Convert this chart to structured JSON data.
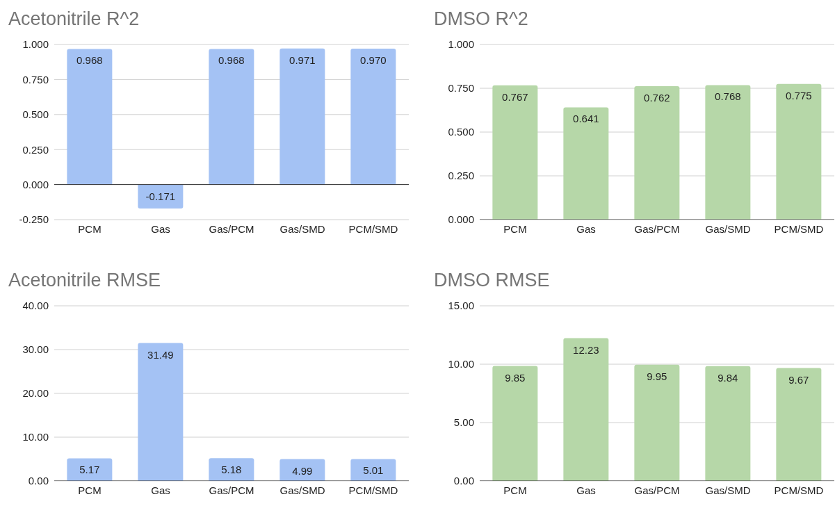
{
  "chart_data": [
    {
      "type": "bar",
      "title": "Acetonitrile R^2",
      "categories": [
        "PCM",
        "Gas",
        "Gas/PCM",
        "Gas/SMD",
        "PCM/SMD"
      ],
      "values": [
        0.968,
        -0.171,
        0.968,
        0.971,
        0.97
      ],
      "value_labels": [
        "0.968",
        "-0.171",
        "0.968",
        "0.971",
        "0.970"
      ],
      "color": "#a4c2f4",
      "ylim": [
        -0.25,
        1
      ],
      "yticks": [
        {
          "value": -0.25,
          "label": "-0.250"
        },
        {
          "value": 0,
          "label": "0.000"
        },
        {
          "value": 0.25,
          "label": "0.250"
        },
        {
          "value": 0.5,
          "label": "0.500"
        },
        {
          "value": 0.75,
          "label": "0.750"
        },
        {
          "value": 1,
          "label": "1.000"
        }
      ],
      "grid": "y"
    },
    {
      "type": "bar",
      "title": "DMSO R^2",
      "categories": [
        "PCM",
        "Gas",
        "Gas/PCM",
        "Gas/SMD",
        "PCM/SMD"
      ],
      "values": [
        0.767,
        0.641,
        0.762,
        0.768,
        0.775
      ],
      "value_labels": [
        "0.767",
        "0.641",
        "0.762",
        "0.768",
        "0.775"
      ],
      "color": "#b6d7a8",
      "ylim": [
        0,
        1
      ],
      "yticks": [
        {
          "value": 0,
          "label": "0.000"
        },
        {
          "value": 0.25,
          "label": "0.250"
        },
        {
          "value": 0.5,
          "label": "0.500"
        },
        {
          "value": 0.75,
          "label": "0.750"
        },
        {
          "value": 1,
          "label": "1.000"
        }
      ],
      "grid": "y"
    },
    {
      "type": "bar",
      "title": "Acetonitrile RMSE",
      "categories": [
        "PCM",
        "Gas",
        "Gas/PCM",
        "Gas/SMD",
        "PCM/SMD"
      ],
      "values": [
        5.17,
        31.49,
        5.18,
        4.99,
        5.01
      ],
      "value_labels": [
        "5.17",
        "31.49",
        "5.18",
        "4.99",
        "5.01"
      ],
      "color": "#a4c2f4",
      "ylim": [
        0,
        40
      ],
      "yticks": [
        {
          "value": 0,
          "label": "0.00"
        },
        {
          "value": 10,
          "label": "10.00"
        },
        {
          "value": 20,
          "label": "20.00"
        },
        {
          "value": 30,
          "label": "30.00"
        },
        {
          "value": 40,
          "label": "40.00"
        }
      ],
      "grid": "y"
    },
    {
      "type": "bar",
      "title": "DMSO RMSE",
      "categories": [
        "PCM",
        "Gas",
        "Gas/PCM",
        "Gas/SMD",
        "PCM/SMD"
      ],
      "values": [
        9.85,
        12.23,
        9.95,
        9.84,
        9.67
      ],
      "value_labels": [
        "9.85",
        "12.23",
        "9.95",
        "9.84",
        "9.67"
      ],
      "color": "#b6d7a8",
      "ylim": [
        0,
        15
      ],
      "yticks": [
        {
          "value": 0,
          "label": "0.00"
        },
        {
          "value": 5,
          "label": "5.00"
        },
        {
          "value": 10,
          "label": "10.00"
        },
        {
          "value": 15,
          "label": "15.00"
        }
      ],
      "grid": "y"
    }
  ]
}
